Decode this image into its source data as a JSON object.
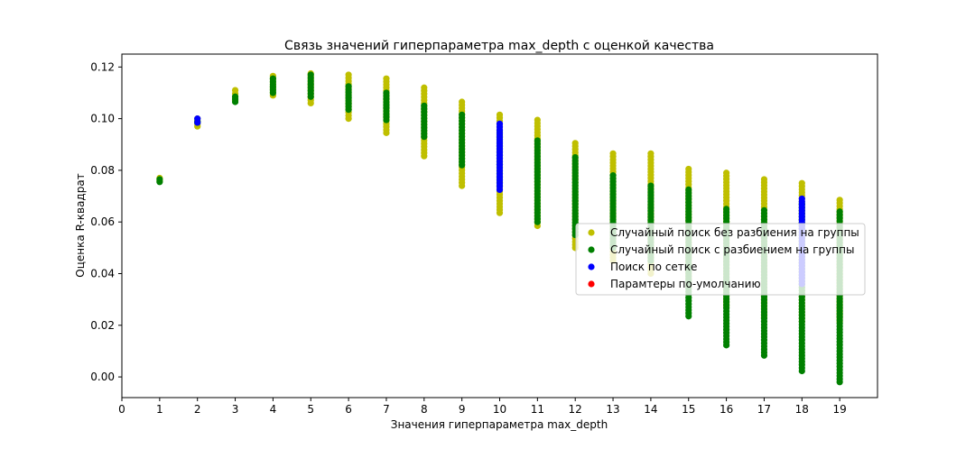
{
  "chart_data": {
    "type": "scatter",
    "title": "Связь значений гиперпараметра max_depth с оценкой качества",
    "xlabel": "Значения гиперпараметра max_depth",
    "ylabel": "Оценка R-квадрат",
    "xlim": [
      0,
      20
    ],
    "ylim": [
      -0.008,
      0.125
    ],
    "xticks": [
      "0",
      "1",
      "2",
      "3",
      "4",
      "5",
      "6",
      "7",
      "8",
      "9",
      "10",
      "11",
      "12",
      "13",
      "14",
      "15",
      "16",
      "17",
      "18",
      "19"
    ],
    "yticks": [
      "0.00",
      "0.02",
      "0.04",
      "0.06",
      "0.08",
      "0.10",
      "0.12"
    ],
    "grid": false,
    "legend_position": "center-right",
    "series": [
      {
        "name": "Случайный поиск без разбиения на группы",
        "color": "#bfbf00",
        "points": [
          {
            "x": 1,
            "y": [
              0.076,
              0.077
            ]
          },
          {
            "x": 2,
            "y": [
              0.097,
              0.1
            ]
          },
          {
            "x": 3,
            "y": [
              0.107,
              0.111
            ]
          },
          {
            "x": 4,
            "y": [
              0.109,
              0.1165
            ]
          },
          {
            "x": 5,
            "y": [
              0.106,
              0.1175
            ]
          },
          {
            "x": 6,
            "y": [
              0.1,
              0.117
            ]
          },
          {
            "x": 7,
            "y": [
              0.0945,
              0.1155
            ]
          },
          {
            "x": 8,
            "y": [
              0.0855,
              0.112
            ]
          },
          {
            "x": 9,
            "y": [
              0.074,
              0.1065
            ]
          },
          {
            "x": 10,
            "y": [
              0.0635,
              0.1015
            ]
          },
          {
            "x": 11,
            "y": [
              0.0585,
              0.0995
            ]
          },
          {
            "x": 12,
            "y": [
              0.05,
              0.0905
            ]
          },
          {
            "x": 13,
            "y": [
              0.045,
              0.0865
            ]
          },
          {
            "x": 14,
            "y": [
              0.04,
              0.0865
            ]
          },
          {
            "x": 15,
            "y": [
              0.035,
              0.0805
            ]
          },
          {
            "x": 16,
            "y": [
              0.0275,
              0.079
            ]
          },
          {
            "x": 17,
            "y": [
              0.023,
              0.0765
            ]
          },
          {
            "x": 18,
            "y": [
              0.0215,
              0.075
            ]
          },
          {
            "x": 19,
            "y": [
              0.0215,
              0.0685
            ]
          }
        ]
      },
      {
        "name": "Случайный поиск с разбиением на группы",
        "color": "#008000",
        "points": [
          {
            "x": 1,
            "y": [
              0.0755,
              0.0765
            ]
          },
          {
            "x": 2,
            "y": [
              0.0985,
              0.099
            ]
          },
          {
            "x": 3,
            "y": [
              0.1065,
              0.1085
            ]
          },
          {
            "x": 4,
            "y": [
              0.11,
              0.1155
            ]
          },
          {
            "x": 5,
            "y": [
              0.1085,
              0.117
            ]
          },
          {
            "x": 6,
            "y": [
              0.1035,
              0.1125
            ]
          },
          {
            "x": 7,
            "y": [
              0.0995,
              0.11
            ]
          },
          {
            "x": 8,
            "y": [
              0.093,
              0.105
            ]
          },
          {
            "x": 9,
            "y": [
              0.082,
              0.1015
            ]
          },
          {
            "x": 10,
            "y": [
              0.074,
              0.095
            ]
          },
          {
            "x": 11,
            "y": [
              0.06,
              0.0915
            ]
          },
          {
            "x": 12,
            "y": [
              0.055,
              0.085
            ]
          },
          {
            "x": 13,
            "y": [
              0.05,
              0.078
            ]
          },
          {
            "x": 14,
            "y": [
              0.045,
              0.074
            ]
          },
          {
            "x": 15,
            "y": [
              0.0235,
              0.0725
            ]
          },
          {
            "x": 16,
            "y": [
              0.0123,
              0.065
            ]
          },
          {
            "x": 17,
            "y": [
              0.0083,
              0.0645
            ]
          },
          {
            "x": 18,
            "y": [
              0.0023,
              0.067
            ]
          },
          {
            "x": 19,
            "y": [
              -0.002,
              0.064
            ]
          }
        ]
      },
      {
        "name": "Поиск по сетке",
        "color": "#0000ff",
        "points": [
          {
            "x": 2,
            "y": [
              0.0985,
              0.1
            ]
          },
          {
            "x": 10,
            "y": [
              0.0725,
              0.098
            ]
          },
          {
            "x": 18,
            "y": [
              0.036,
              0.069
            ]
          }
        ]
      },
      {
        "name": "Парамтеры по-умолчанию",
        "color": "#ff0000",
        "points": []
      }
    ]
  }
}
